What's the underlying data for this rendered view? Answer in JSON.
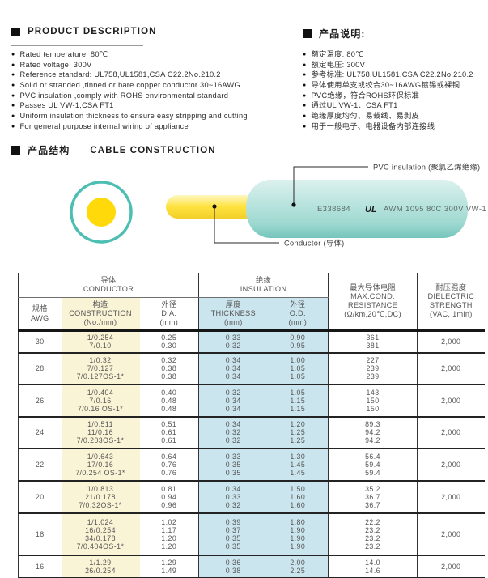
{
  "colors": {
    "ring": "#4CBFB2",
    "conductor": "#FFD90A",
    "insulation": "#B7E2DD",
    "table_yellow": "#FAF4D6",
    "table_blue": "#CBE5EE"
  },
  "product_description": {
    "title": "PRODUCT DESCRIPTION",
    "items": [
      "Rated temperature: 80℃",
      "Rated voltage: 300V",
      "Reference standard: UL758,UL1581,CSA C22.2No.210.2",
      "Solid or stranded ,tinned or bare copper conductor 30~16AWG",
      "PVC insulation ,comply with ROHS environmental standard",
      "Passes UL VW-1,CSA FT1",
      "Uniform insulation thickness to ensure easy stripping and cutting",
      "For general purpose internal wiring of appliance"
    ]
  },
  "product_description_cn": {
    "title": "产品说明:",
    "items": [
      "额定温度: 80℃",
      "额定电压: 300V",
      "参考标准: UL758,UL1581,CSA C22.2No.210.2",
      "导体使用单支或绞合30~16AWG镀锡或裸铜",
      "PVC绝缘，符合ROHS环保标准",
      "通过UL VW-1、CSA FT1",
      "绝缘厚度均匀、易裁线、易剥皮",
      "用于一般电子、电器设备内部连接线"
    ]
  },
  "construction": {
    "title_cn": "产品结构",
    "title_en": "CABLE CONSTRUCTION",
    "insulation_label": "PVC insulation (聚氯乙烯绝缘)",
    "conductor_label": "Conductor (导体)",
    "print_cert": "E338684",
    "ul_mark": "UL",
    "print_spec": "AWM 1095 80C 300V VW-1"
  },
  "table": {
    "groups": [
      {
        "cn": "导体",
        "en": "CONDUCTOR"
      },
      {
        "cn": "绝缘",
        "en": "INSULATION"
      }
    ],
    "columns": [
      {
        "cn": "规格",
        "en": "AWG",
        "sub": ""
      },
      {
        "cn": "构造",
        "en": "CONSTRUCTION",
        "sub": "(No./mm)"
      },
      {
        "cn": "外径",
        "en": "DIA.",
        "sub": "(mm)"
      },
      {
        "cn": "厚度",
        "en": "THICKNESS",
        "sub": "(mm)"
      },
      {
        "cn": "外径",
        "en": "O.D.",
        "sub": "(mm)"
      },
      {
        "cn": "最大导体电阻",
        "en": "MAX.COND.",
        "en2": "RESISTANCE",
        "sub": "(Ω/km,20℃,DC)"
      },
      {
        "cn": "耐压强度",
        "en": "DIELECTRIC",
        "en2": "STRENGTH",
        "sub": "(VAC, 1min)"
      }
    ],
    "rows": [
      {
        "awg": "30",
        "construction": [
          "1/0.254",
          "7/0.10"
        ],
        "dia": [
          "0.25",
          "0.30"
        ],
        "thickness": [
          "0.33",
          "0.32"
        ],
        "od": [
          "0.90",
          "0.95"
        ],
        "resistance": [
          "361",
          "381"
        ],
        "dielectric": "2,000"
      },
      {
        "awg": "28",
        "construction": [
          "1/0.32",
          "7/0.127",
          "7/0.127OS-1*"
        ],
        "dia": [
          "0.32",
          "0.38",
          "0.38"
        ],
        "thickness": [
          "0.34",
          "0.34",
          "0.34"
        ],
        "od": [
          "1.00",
          "1.05",
          "1.05"
        ],
        "resistance": [
          "227",
          "239",
          "239"
        ],
        "dielectric": "2,000"
      },
      {
        "awg": "26",
        "construction": [
          "1/0.404",
          "7/0.16",
          "7/0.16 OS-1*"
        ],
        "dia": [
          "0.40",
          "0.48",
          "0.48"
        ],
        "thickness": [
          "0.32",
          "0.34",
          "0.34"
        ],
        "od": [
          "1.05",
          "1.15",
          "1.15"
        ],
        "resistance": [
          "143",
          "150",
          "150"
        ],
        "dielectric": "2,000"
      },
      {
        "awg": "24",
        "construction": [
          "1/0.511",
          "11/0.16",
          "7/0.203OS-1*"
        ],
        "dia": [
          "0.51",
          "0.61",
          "0.61"
        ],
        "thickness": [
          "0.34",
          "0.32",
          "0.32"
        ],
        "od": [
          "1.20",
          "1.25",
          "1.25"
        ],
        "resistance": [
          "89.3",
          "94.2",
          "94.2"
        ],
        "dielectric": "2,000"
      },
      {
        "awg": "22",
        "construction": [
          "1/0.643",
          "17/0.16",
          "7/0.254 OS-1*"
        ],
        "dia": [
          "0.64",
          "0.76",
          "0.76"
        ],
        "thickness": [
          "0.33",
          "0.35",
          "0.35"
        ],
        "od": [
          "1.30",
          "1.45",
          "1.45"
        ],
        "resistance": [
          "56.4",
          "59.4",
          "59.4"
        ],
        "dielectric": "2,000"
      },
      {
        "awg": "20",
        "construction": [
          "1/0.813",
          "21/0.178",
          "7/0.32OS-1*"
        ],
        "dia": [
          "0.81",
          "0.94",
          "0.96"
        ],
        "thickness": [
          "0.34",
          "0.33",
          "0.32"
        ],
        "od": [
          "1.50",
          "1.60",
          "1.60"
        ],
        "resistance": [
          "35.2",
          "36.7",
          "36.7"
        ],
        "dielectric": "2,000"
      },
      {
        "awg": "18",
        "construction": [
          "1/1.024",
          "16/0.254",
          "34/0.178",
          "7/0.404OS-1*"
        ],
        "dia": [
          "1.02",
          "1.17",
          "1.20",
          "1.20"
        ],
        "thickness": [
          "0.39",
          "0.37",
          "0.35",
          "0.35"
        ],
        "od": [
          "1.80",
          "1.90",
          "1.90",
          "1.90"
        ],
        "resistance": [
          "22.2",
          "23.2",
          "23.2",
          "23.2"
        ],
        "dielectric": "2,000"
      },
      {
        "awg": "16",
        "construction": [
          "1/1.29",
          "26/0.254"
        ],
        "dia": [
          "1.29",
          "1.49"
        ],
        "thickness": [
          "0.36",
          "0.38"
        ],
        "od": [
          "2.00",
          "2.25"
        ],
        "resistance": [
          "14.0",
          "14.6"
        ],
        "dielectric": "2,000"
      }
    ]
  }
}
